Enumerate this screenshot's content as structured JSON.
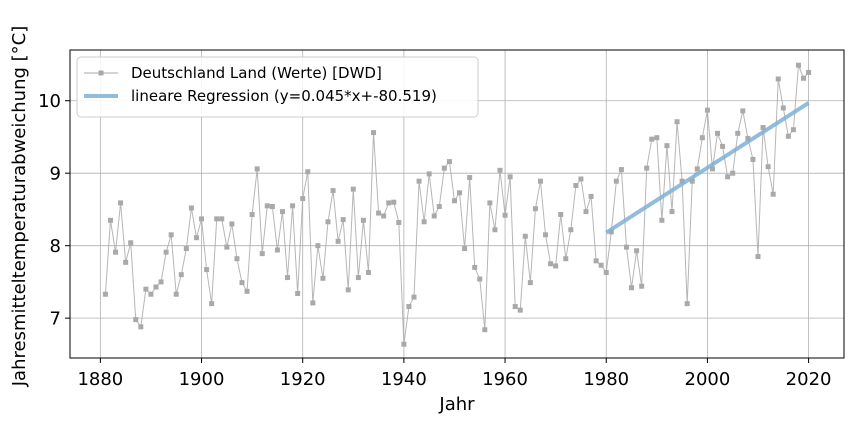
{
  "chart_data": {
    "type": "line",
    "xlabel": "Jahr",
    "ylabel": "Jahresmitteltemperaturabweichung [°C]",
    "xlim": [
      1874,
      2027
    ],
    "ylim": [
      6.45,
      10.7
    ],
    "xticks": [
      1880,
      1900,
      1920,
      1940,
      1960,
      1980,
      2000,
      2020
    ],
    "xtick_labels": [
      "1880",
      "1900",
      "1920",
      "1940",
      "1960",
      "1980",
      "2000",
      "2020"
    ],
    "yticks": [
      7,
      8,
      9,
      10
    ],
    "ytick_labels": [
      "7",
      "8",
      "9",
      "10"
    ],
    "grid": true,
    "legend_position": "top-left",
    "colors": {
      "data": "#a9a9a9",
      "regression": "#7eb0d5"
    },
    "series": [
      {
        "name": "Deutschland Land (Werte) [DWD]",
        "marker": "square",
        "x": [
          1881,
          1882,
          1883,
          1884,
          1885,
          1886,
          1887,
          1888,
          1889,
          1890,
          1891,
          1892,
          1893,
          1894,
          1895,
          1896,
          1897,
          1898,
          1899,
          1900,
          1901,
          1902,
          1903,
          1904,
          1905,
          1906,
          1907,
          1908,
          1909,
          1910,
          1911,
          1912,
          1913,
          1914,
          1915,
          1916,
          1917,
          1918,
          1919,
          1920,
          1921,
          1922,
          1923,
          1924,
          1925,
          1926,
          1927,
          1928,
          1929,
          1930,
          1931,
          1932,
          1933,
          1934,
          1935,
          1936,
          1937,
          1938,
          1939,
          1940,
          1941,
          1942,
          1943,
          1944,
          1945,
          1946,
          1947,
          1948,
          1949,
          1950,
          1951,
          1952,
          1953,
          1954,
          1955,
          1956,
          1957,
          1958,
          1959,
          1960,
          1961,
          1962,
          1963,
          1964,
          1965,
          1966,
          1967,
          1968,
          1969,
          1970,
          1971,
          1972,
          1973,
          1974,
          1975,
          1976,
          1977,
          1978,
          1979,
          1980,
          1981,
          1982,
          1983,
          1984,
          1985,
          1986,
          1987,
          1988,
          1989,
          1990,
          1991,
          1992,
          1993,
          1994,
          1995,
          1996,
          1997,
          1998,
          1999,
          2000,
          2001,
          2002,
          2003,
          2004,
          2005,
          2006,
          2007,
          2008,
          2009,
          2010,
          2011,
          2012,
          2013,
          2014,
          2015,
          2016,
          2017,
          2018,
          2019,
          2020
        ],
        "y": [
          7.33,
          8.35,
          7.91,
          8.59,
          7.77,
          8.04,
          6.98,
          6.88,
          7.4,
          7.33,
          7.43,
          7.5,
          7.91,
          8.15,
          7.33,
          7.6,
          7.96,
          8.52,
          8.11,
          8.37,
          7.67,
          7.2,
          8.37,
          8.37,
          7.98,
          8.3,
          7.82,
          7.49,
          7.37,
          8.43,
          9.06,
          7.89,
          8.55,
          8.54,
          7.94,
          8.47,
          7.56,
          8.55,
          7.34,
          8.65,
          9.02,
          7.21,
          8.0,
          7.55,
          8.33,
          8.76,
          8.06,
          8.36,
          7.39,
          8.78,
          7.56,
          8.35,
          7.63,
          9.56,
          8.45,
          8.41,
          8.59,
          8.6,
          8.32,
          6.64,
          7.16,
          7.29,
          8.89,
          8.33,
          8.99,
          8.41,
          8.54,
          9.07,
          9.16,
          8.62,
          8.73,
          7.96,
          8.94,
          7.7,
          7.54,
          6.84,
          8.59,
          8.22,
          9.04,
          8.42,
          8.95,
          7.16,
          7.11,
          8.13,
          7.49,
          8.51,
          8.89,
          8.15,
          7.75,
          7.72,
          8.43,
          7.82,
          8.22,
          8.83,
          8.92,
          8.47,
          8.68,
          7.79,
          7.73,
          7.63,
          8.19,
          8.89,
          9.05,
          7.98,
          7.42,
          7.93,
          7.44,
          9.07,
          9.47,
          9.49,
          8.35,
          9.38,
          8.47,
          9.71,
          8.89,
          7.2,
          8.89,
          9.06,
          9.49,
          9.87,
          9.06,
          9.55,
          9.37,
          8.95,
          9.0,
          9.55,
          9.86,
          9.48,
          9.19,
          7.85,
          9.63,
          9.09,
          8.71,
          10.3,
          9.9,
          9.51,
          9.6,
          10.49,
          10.31,
          10.39
        ]
      },
      {
        "name": "lineare Regression (y=0.045*x+-80.519)",
        "x": [
          1980,
          2020
        ],
        "y": [
          8.18,
          9.97
        ]
      }
    ]
  }
}
